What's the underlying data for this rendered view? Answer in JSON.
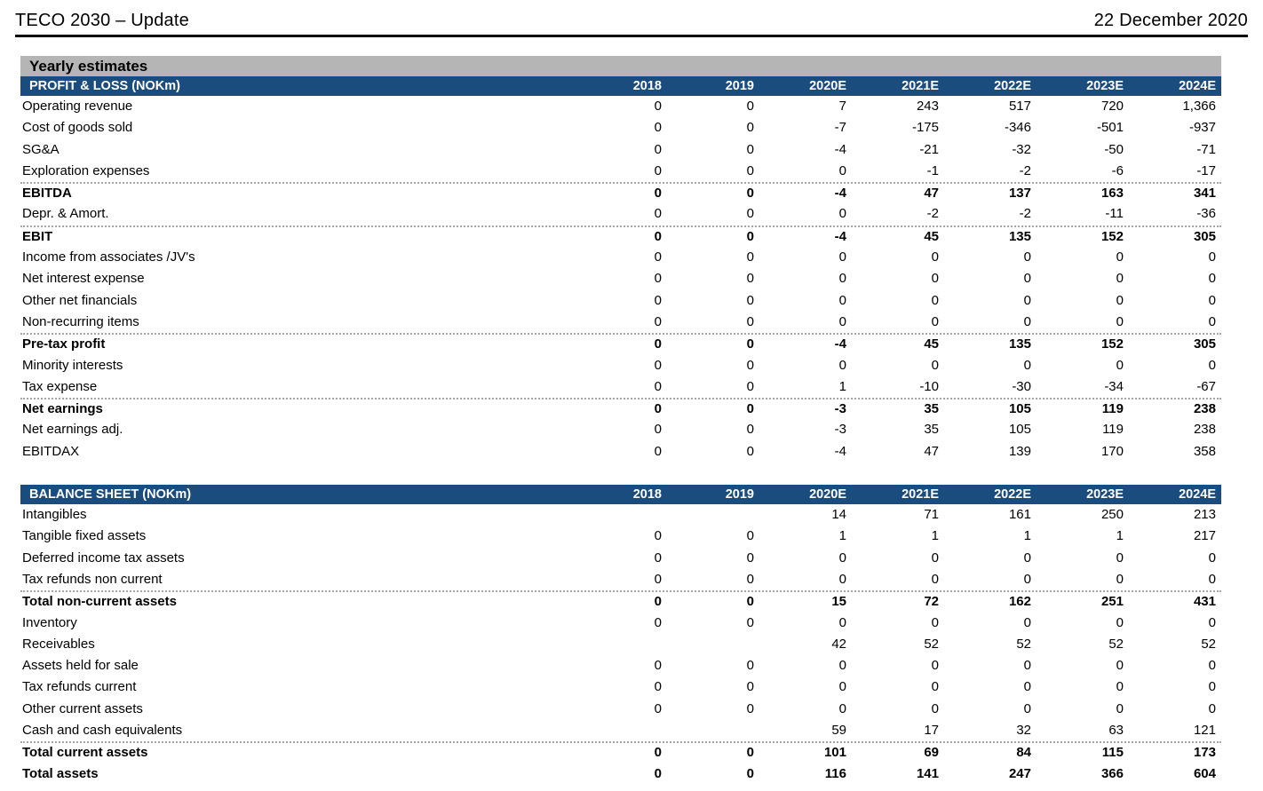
{
  "header": {
    "title": "TECO 2030 – Update",
    "date": "22 December 2020"
  },
  "section_title": "Yearly estimates",
  "columns": [
    "2018",
    "2019",
    "2020E",
    "2021E",
    "2022E",
    "2023E",
    "2024E"
  ],
  "colors": {
    "table_header_bar": "#1B4C7E",
    "section_bar": "#B5B5B5",
    "separator_dots": "#A6A6A6",
    "rule": "#000000"
  },
  "tables": [
    {
      "id": "profit-loss",
      "name": "PROFIT & LOSS (NOKm)",
      "rows": [
        {
          "label": "Operating revenue",
          "values": [
            "0",
            "0",
            "7",
            "243",
            "517",
            "720",
            "1,366"
          ],
          "bold": false,
          "sep": false
        },
        {
          "label": "Cost of goods sold",
          "values": [
            "0",
            "0",
            "-7",
            "-175",
            "-346",
            "-501",
            "-937"
          ],
          "bold": false,
          "sep": false
        },
        {
          "label": "SG&A",
          "values": [
            "0",
            "0",
            "-4",
            "-21",
            "-32",
            "-50",
            "-71"
          ],
          "bold": false,
          "sep": false
        },
        {
          "label": "Exploration expenses",
          "values": [
            "0",
            "0",
            "0",
            "-1",
            "-2",
            "-6",
            "-17"
          ],
          "bold": false,
          "sep": false
        },
        {
          "label": "EBITDA",
          "values": [
            "0",
            "0",
            "-4",
            "47",
            "137",
            "163",
            "341"
          ],
          "bold": true,
          "sep": true
        },
        {
          "label": "Depr. & Amort.",
          "values": [
            "0",
            "0",
            "0",
            "-2",
            "-2",
            "-11",
            "-36"
          ],
          "bold": false,
          "sep": false
        },
        {
          "label": "EBIT",
          "values": [
            "0",
            "0",
            "-4",
            "45",
            "135",
            "152",
            "305"
          ],
          "bold": true,
          "sep": true
        },
        {
          "label": "Income from associates /JV's",
          "values": [
            "0",
            "0",
            "0",
            "0",
            "0",
            "0",
            "0"
          ],
          "bold": false,
          "sep": false
        },
        {
          "label": "Net interest expense",
          "values": [
            "0",
            "0",
            "0",
            "0",
            "0",
            "0",
            "0"
          ],
          "bold": false,
          "sep": false
        },
        {
          "label": "Other net financials",
          "values": [
            "0",
            "0",
            "0",
            "0",
            "0",
            "0",
            "0"
          ],
          "bold": false,
          "sep": false
        },
        {
          "label": "Non-recurring items",
          "values": [
            "0",
            "0",
            "0",
            "0",
            "0",
            "0",
            "0"
          ],
          "bold": false,
          "sep": false
        },
        {
          "label": "Pre-tax profit",
          "values": [
            "0",
            "0",
            "-4",
            "45",
            "135",
            "152",
            "305"
          ],
          "bold": true,
          "sep": true
        },
        {
          "label": "Minority interests",
          "values": [
            "0",
            "0",
            "0",
            "0",
            "0",
            "0",
            "0"
          ],
          "bold": false,
          "sep": false
        },
        {
          "label": "Tax expense",
          "values": [
            "0",
            "0",
            "1",
            "-10",
            "-30",
            "-34",
            "-67"
          ],
          "bold": false,
          "sep": false
        },
        {
          "label": "Net earnings",
          "values": [
            "0",
            "0",
            "-3",
            "35",
            "105",
            "119",
            "238"
          ],
          "bold": true,
          "sep": true
        },
        {
          "label": "Net earnings adj.",
          "values": [
            "0",
            "0",
            "-3",
            "35",
            "105",
            "119",
            "238"
          ],
          "bold": false,
          "sep": false
        },
        {
          "label": "EBITDAX",
          "values": [
            "0",
            "0",
            "-4",
            "47",
            "139",
            "170",
            "358"
          ],
          "bold": false,
          "sep": false
        }
      ]
    },
    {
      "id": "balance-sheet",
      "name": "BALANCE SHEET (NOKm)",
      "rows": [
        {
          "label": "Intangibles",
          "values": [
            "",
            "",
            "14",
            "71",
            "161",
            "250",
            "213"
          ],
          "bold": false,
          "sep": false
        },
        {
          "label": "Tangible fixed assets",
          "values": [
            "0",
            "0",
            "1",
            "1",
            "1",
            "1",
            "217"
          ],
          "bold": false,
          "sep": false
        },
        {
          "label": "Deferred income tax assets",
          "values": [
            "0",
            "0",
            "0",
            "0",
            "0",
            "0",
            "0"
          ],
          "bold": false,
          "sep": false
        },
        {
          "label": "Tax refunds non current",
          "values": [
            "0",
            "0",
            "0",
            "0",
            "0",
            "0",
            "0"
          ],
          "bold": false,
          "sep": false
        },
        {
          "label": "Total non-current assets",
          "values": [
            "0",
            "0",
            "15",
            "72",
            "162",
            "251",
            "431"
          ],
          "bold": true,
          "sep": true
        },
        {
          "label": "Inventory",
          "values": [
            "0",
            "0",
            "0",
            "0",
            "0",
            "0",
            "0"
          ],
          "bold": false,
          "sep": false
        },
        {
          "label": "Receivables",
          "values": [
            "",
            "",
            "42",
            "52",
            "52",
            "52",
            "52"
          ],
          "bold": false,
          "sep": false
        },
        {
          "label": "Assets held for sale",
          "values": [
            "0",
            "0",
            "0",
            "0",
            "0",
            "0",
            "0"
          ],
          "bold": false,
          "sep": false
        },
        {
          "label": "Tax refunds current",
          "values": [
            "0",
            "0",
            "0",
            "0",
            "0",
            "0",
            "0"
          ],
          "bold": false,
          "sep": false
        },
        {
          "label": "Other current assets",
          "values": [
            "0",
            "0",
            "0",
            "0",
            "0",
            "0",
            "0"
          ],
          "bold": false,
          "sep": false
        },
        {
          "label": "Cash and cash equivalents",
          "values": [
            "",
            "",
            "59",
            "17",
            "32",
            "63",
            "121"
          ],
          "bold": false,
          "sep": false
        },
        {
          "label": "Total current assets",
          "values": [
            "0",
            "0",
            "101",
            "69",
            "84",
            "115",
            "173"
          ],
          "bold": true,
          "sep": true
        },
        {
          "label": "Total assets",
          "values": [
            "0",
            "0",
            "116",
            "141",
            "247",
            "366",
            "604"
          ],
          "bold": true,
          "sep": false
        }
      ]
    }
  ]
}
